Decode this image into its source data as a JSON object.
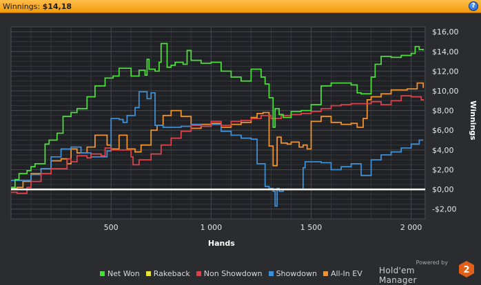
{
  "header": {
    "label": "Winnings:",
    "value": "$14,18",
    "help": "?"
  },
  "branding": {
    "powered_by": "Powered by",
    "product": "Hold'em Manager",
    "version": "2"
  },
  "colors": {
    "net_won": "#4cdd3c",
    "rakeback": "#e8e23a",
    "non_showdown": "#e0404a",
    "showdown": "#3d8fd6",
    "all_in_ev": "#f0922e",
    "zero_line": "#ffffff"
  },
  "chart_data": {
    "type": "line",
    "xlabel": "Hands",
    "ylabel": "Winnings",
    "xlim": [
      0,
      2070
    ],
    "ylim": [
      -3.0,
      16.5
    ],
    "x_ticks": [
      500,
      1000,
      1500,
      2000
    ],
    "x_tick_labels": [
      "500",
      "1 000",
      "1 500",
      "2 000"
    ],
    "y_ticks": [
      -2,
      0,
      2,
      4,
      6,
      8,
      10,
      12,
      14,
      16
    ],
    "y_tick_labels": [
      "-$2,00",
      "$0,00",
      "$2,00",
      "$4,00",
      "$6,00",
      "$8,00",
      "$10,00",
      "$12,00",
      "$14,00",
      "$16,00"
    ],
    "grid": true,
    "legend_position": "bottom",
    "series": [
      {
        "name": "Net Won",
        "color": "#4cdd3c",
        "x": [
          0,
          20,
          40,
          80,
          100,
          120,
          170,
          190,
          230,
          260,
          300,
          330,
          380,
          420,
          470,
          510,
          540,
          600,
          640,
          670,
          680,
          690,
          720,
          740,
          750,
          780,
          800,
          820,
          860,
          880,
          900,
          950,
          1000,
          1050,
          1100,
          1150,
          1200,
          1250,
          1270,
          1290,
          1310,
          1320,
          1340,
          1360,
          1400,
          1450,
          1500,
          1550,
          1600,
          1650,
          1700,
          1730,
          1750,
          1800,
          1820,
          1850,
          1900,
          1950,
          2000,
          2020,
          2040,
          2060
        ],
        "y": [
          0.2,
          1.0,
          1.6,
          1.9,
          2.3,
          2.6,
          4.6,
          5.0,
          5.7,
          7.4,
          7.8,
          8.2,
          9.4,
          10.5,
          11.3,
          11.5,
          12.3,
          11.5,
          12.1,
          11.6,
          13.2,
          12.2,
          12.0,
          12.9,
          14.8,
          12.4,
          12.6,
          12.9,
          12.7,
          14.1,
          13.1,
          12.8,
          12.9,
          12.0,
          11.4,
          11.0,
          12.2,
          11.4,
          10.7,
          9.3,
          6.3,
          8.2,
          7.6,
          7.3,
          7.9,
          8.0,
          8.6,
          10.5,
          10.8,
          10.8,
          10.6,
          9.8,
          9.7,
          11.4,
          12.7,
          13.5,
          13.4,
          13.6,
          13.8,
          14.5,
          14.2,
          14.1
        ]
      },
      {
        "name": "Rakeback",
        "color": "#e8e23a",
        "x": [
          0,
          2060
        ],
        "y": [
          0.0,
          0.0
        ]
      },
      {
        "name": "Non Showdown",
        "color": "#e0404a",
        "x": [
          0,
          30,
          80,
          100,
          150,
          200,
          280,
          300,
          330,
          380,
          400,
          450,
          470,
          500,
          600,
          610,
          640,
          700,
          750,
          800,
          850,
          900,
          950,
          1000,
          1050,
          1100,
          1150,
          1200,
          1250,
          1300,
          1350,
          1400,
          1450,
          1500,
          1550,
          1600,
          1650,
          1700,
          1750,
          1800,
          1850,
          1900,
          1950,
          2000,
          2050,
          2060
        ],
        "y": [
          -0.3,
          -0.4,
          0.2,
          0.8,
          1.6,
          2.1,
          3.1,
          2.8,
          3.4,
          3.2,
          3.6,
          3.4,
          4.2,
          4.0,
          3.3,
          2.5,
          3.0,
          3.6,
          4.5,
          5.2,
          5.9,
          6.5,
          6.4,
          6.9,
          6.5,
          6.9,
          7.0,
          7.2,
          7.5,
          7.2,
          7.5,
          7.6,
          7.7,
          7.9,
          8.2,
          8.5,
          8.6,
          8.7,
          8.7,
          8.9,
          8.6,
          9.0,
          9.5,
          9.4,
          9.1,
          9.0
        ]
      },
      {
        "name": "Showdown",
        "color": "#3d8fd6",
        "x": [
          0,
          60,
          100,
          150,
          200,
          250,
          300,
          350,
          400,
          480,
          500,
          540,
          560,
          580,
          620,
          640,
          680,
          700,
          720,
          760,
          800,
          850,
          900,
          950,
          1000,
          1050,
          1100,
          1150,
          1200,
          1230,
          1270,
          1290,
          1310,
          1320,
          1330,
          1340,
          1360,
          1400,
          1450,
          1460,
          1470,
          1500,
          1550,
          1600,
          1650,
          1700,
          1750,
          1800,
          1850,
          1900,
          1950,
          2000,
          2040,
          2060
        ],
        "y": [
          0.9,
          0.9,
          1.5,
          2.1,
          3.3,
          4.1,
          4.3,
          3.7,
          3.3,
          3.9,
          7.2,
          7.1,
          6.8,
          7.5,
          8.3,
          9.9,
          9.2,
          9.8,
          6.5,
          6.3,
          6.3,
          6.4,
          6.6,
          6.4,
          6.6,
          5.9,
          5.5,
          5.2,
          5.1,
          2.6,
          0.3,
          0.1,
          -0.2,
          -1.7,
          0.1,
          -0.2,
          0.0,
          0.0,
          0.0,
          2.2,
          2.8,
          2.8,
          2.7,
          2.0,
          2.3,
          2.6,
          1.4,
          3.0,
          3.5,
          3.8,
          4.2,
          4.6,
          5.0,
          5.0
        ]
      },
      {
        "name": "All-In EV",
        "color": "#f0922e",
        "x": [
          0,
          30,
          60,
          100,
          150,
          200,
          250,
          280,
          300,
          330,
          380,
          420,
          480,
          500,
          540,
          580,
          620,
          650,
          700,
          730,
          760,
          800,
          850,
          900,
          950,
          1000,
          1050,
          1100,
          1150,
          1200,
          1230,
          1260,
          1290,
          1310,
          1330,
          1350,
          1380,
          1400,
          1440,
          1460,
          1480,
          1500,
          1550,
          1600,
          1650,
          1700,
          1730,
          1760,
          1780,
          1800,
          1850,
          1900,
          1950,
          1980,
          2000,
          2030,
          2060
        ],
        "y": [
          0.1,
          0.2,
          0.8,
          1.6,
          2.1,
          2.9,
          3.1,
          2.6,
          4.1,
          3.7,
          4.3,
          5.5,
          4.5,
          4.1,
          5.5,
          4.1,
          3.8,
          4.5,
          6.0,
          6.5,
          7.5,
          8.0,
          7.4,
          6.2,
          6.6,
          6.7,
          6.3,
          6.6,
          6.8,
          7.3,
          7.7,
          7.8,
          4.4,
          2.4,
          5.3,
          4.7,
          4.6,
          4.8,
          4.3,
          4.5,
          4.1,
          6.9,
          7.4,
          6.8,
          6.6,
          6.7,
          6.3,
          7.2,
          9.1,
          9.4,
          9.7,
          10.1,
          10.1,
          10.2,
          10.2,
          10.8,
          10.3
        ]
      }
    ]
  },
  "legend": [
    {
      "label": "Net Won",
      "color": "#4cdd3c"
    },
    {
      "label": "Rakeback",
      "color": "#e8e23a"
    },
    {
      "label": "Non Showdown",
      "color": "#e0404a"
    },
    {
      "label": "Showdown",
      "color": "#3d8fd6"
    },
    {
      "label": "All-In EV",
      "color": "#f0922e"
    }
  ]
}
